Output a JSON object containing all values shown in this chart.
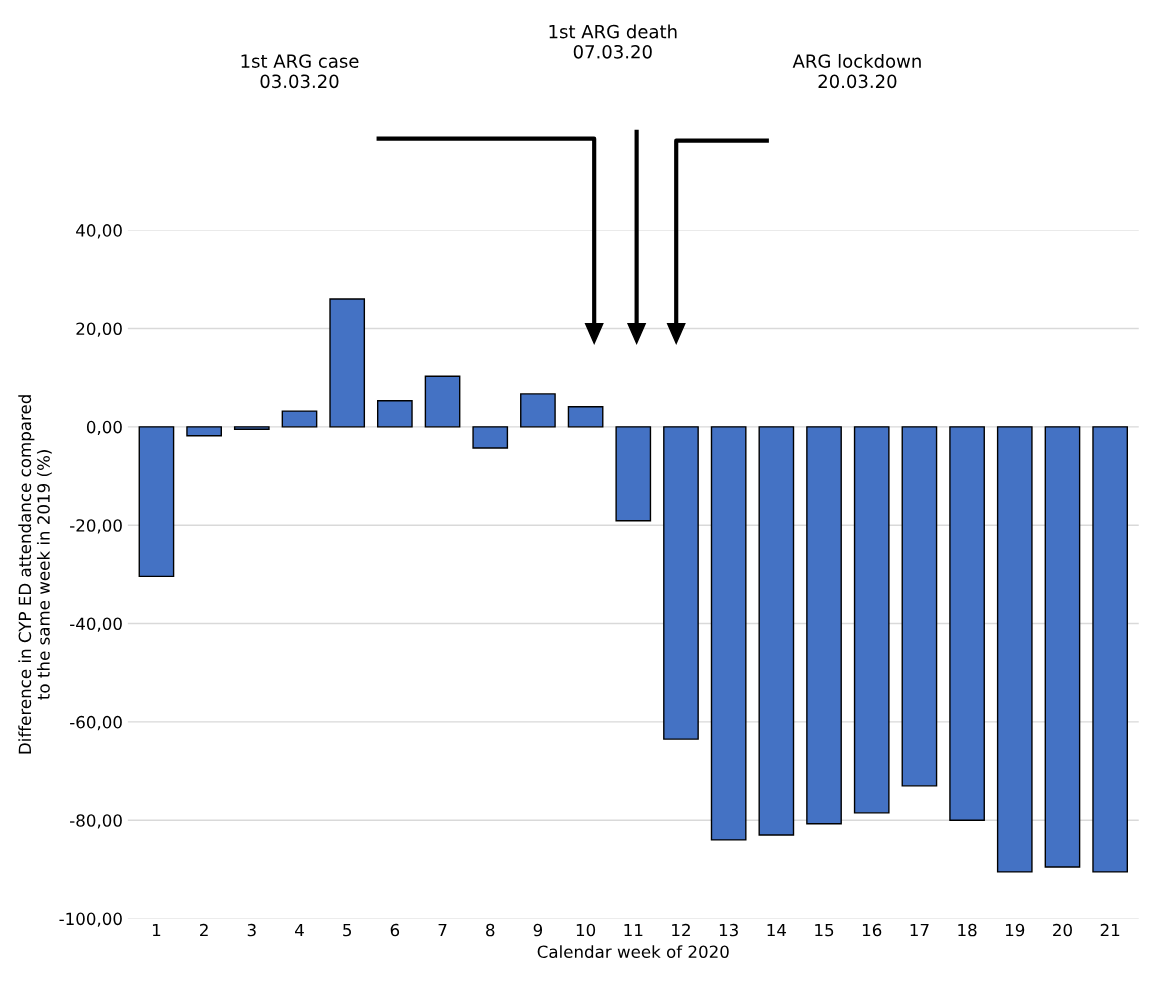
{
  "chart_data": {
    "type": "bar",
    "xlabel": "Calendar week of 2020",
    "ylabel": "Difference in CYP ED attendance compared\nto the same week in 2019 (%)",
    "categories": [
      "1",
      "2",
      "3",
      "4",
      "5",
      "6",
      "7",
      "8",
      "9",
      "10",
      "11",
      "12",
      "13",
      "14",
      "15",
      "16",
      "17",
      "18",
      "19",
      "20",
      "21"
    ],
    "values": [
      -30.4,
      -1.8,
      -0.5,
      3.2,
      26.0,
      5.3,
      10.3,
      -4.3,
      6.7,
      4.1,
      -19.1,
      -63.5,
      -84.0,
      -83.0,
      -80.7,
      -78.5,
      -73.0,
      -80.0,
      -90.5,
      -89.5,
      -90.5
    ],
    "color": "#4472c4",
    "ylim": [
      -100,
      40
    ],
    "yticks": [
      {
        "value": -100,
        "label": "-100,00"
      },
      {
        "value": -80,
        "label": "-80,00"
      },
      {
        "value": -60,
        "label": "-60,00"
      },
      {
        "value": -40,
        "label": "-40,00"
      },
      {
        "value": -20,
        "label": "-20,00"
      },
      {
        "value": 0,
        "label": "0,00"
      },
      {
        "value": 20,
        "label": "20,00"
      },
      {
        "value": 40,
        "label": "40,00"
      }
    ],
    "grid": "y",
    "annotations": [
      "1st ARG case\n03.03.20",
      "1st ARG death\n07.03.20",
      "ARG lockdown\n20.03.20"
    ]
  }
}
